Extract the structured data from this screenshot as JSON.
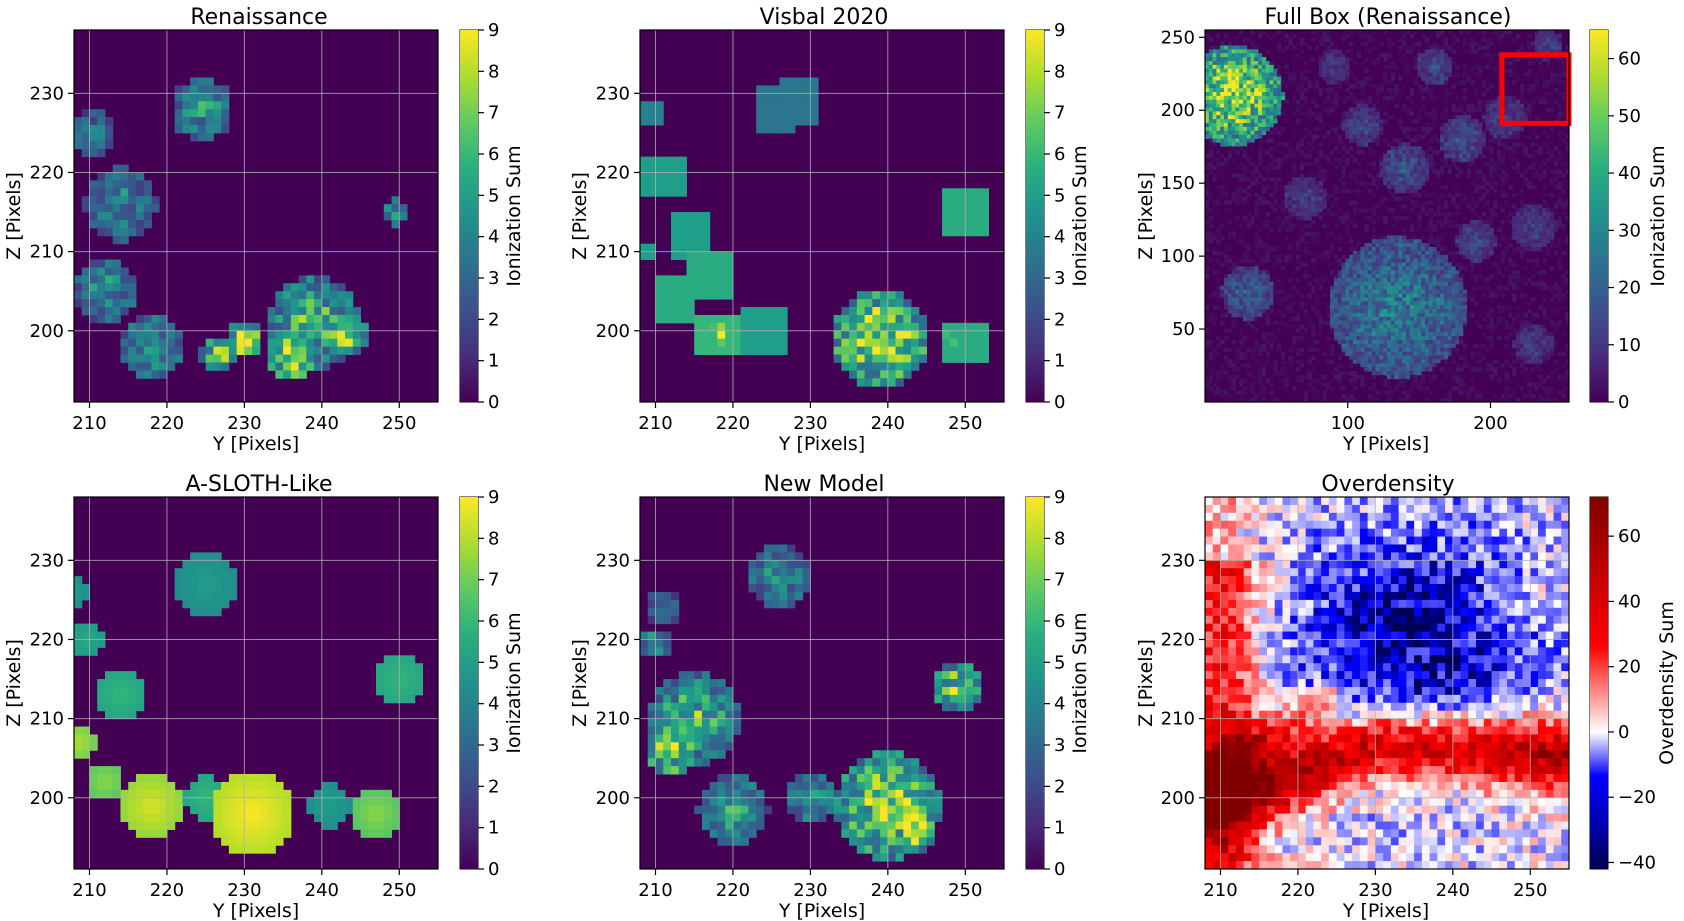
{
  "chart_data": [
    {
      "type": "heatmap",
      "title": "Renaissance",
      "xlabel": "Y [Pixels]",
      "ylabel": "Z [Pixels]",
      "xlim": [
        208,
        255
      ],
      "ylim": [
        191,
        238
      ],
      "xticks": [
        210,
        220,
        230,
        240,
        250
      ],
      "yticks": [
        200,
        210,
        220,
        230
      ],
      "grid": true,
      "colormap": "viridis",
      "colorbar": {
        "label": "Ionization Sum",
        "range": [
          0,
          9
        ],
        "ticks": [
          0,
          1,
          2,
          3,
          4,
          5,
          6,
          7,
          8,
          9
        ]
      },
      "blobs": [
        {
          "x": 224.5,
          "y": 228,
          "r": 3.5,
          "value": 5
        },
        {
          "x": 210.5,
          "y": 225,
          "r": 2.5,
          "value": 4
        },
        {
          "x": 214,
          "y": 216,
          "r": 4,
          "value": 4.5
        },
        {
          "x": 212,
          "y": 205,
          "r": 3.5,
          "value": 5
        },
        {
          "x": 249.5,
          "y": 215,
          "r": 1.5,
          "value": 5
        },
        {
          "x": 239,
          "y": 201,
          "r": 5,
          "value": 6.5
        },
        {
          "x": 236,
          "y": 197,
          "r": 3,
          "value": 8.5
        },
        {
          "x": 230,
          "y": 199,
          "r": 2,
          "value": 9
        },
        {
          "x": 218,
          "y": 198,
          "r": 3.5,
          "value": 5.5
        },
        {
          "x": 226.5,
          "y": 197,
          "r": 2,
          "value": 7.5
        },
        {
          "x": 243,
          "y": 199.5,
          "r": 2.5,
          "value": 7.5
        }
      ]
    },
    {
      "type": "heatmap",
      "title": "Visbal 2020",
      "xlabel": "Y [Pixels]",
      "ylabel": "Z [Pixels]",
      "xlim": [
        208,
        255
      ],
      "ylim": [
        191,
        238
      ],
      "xticks": [
        210,
        220,
        230,
        240,
        250
      ],
      "yticks": [
        200,
        210,
        220,
        230
      ],
      "grid": true,
      "colormap": "viridis",
      "colorbar": {
        "label": "Ionization Sum",
        "range": [
          0,
          9
        ],
        "ticks": [
          0,
          1,
          2,
          3,
          4,
          5,
          6,
          7,
          8,
          9
        ]
      },
      "squares": [
        {
          "x": 209.5,
          "y": 227.5,
          "half": 1.5,
          "value": 4
        },
        {
          "x": 225.5,
          "y": 228,
          "half": 2.5,
          "value": 3.5
        },
        {
          "x": 228.5,
          "y": 229,
          "half": 2.5,
          "value": 3.5
        },
        {
          "x": 211,
          "y": 219.5,
          "half": 2.5,
          "value": 5
        },
        {
          "x": 214.5,
          "y": 212,
          "half": 2.5,
          "value": 5
        },
        {
          "x": 209,
          "y": 210,
          "half": 1,
          "value": 5
        },
        {
          "x": 217,
          "y": 207,
          "half": 2.5,
          "value": 5.5
        },
        {
          "x": 212.5,
          "y": 204,
          "half": 2.5,
          "value": 5.5
        },
        {
          "x": 218,
          "y": 199.5,
          "half": 2.5,
          "value": 6
        },
        {
          "x": 224,
          "y": 200,
          "half": 2.5,
          "value": 5
        },
        {
          "x": 250,
          "y": 215,
          "half": 2.5,
          "value": 5.5
        },
        {
          "x": 250,
          "y": 198.5,
          "half": 2.5,
          "value": 5.5
        }
      ],
      "blobs": [
        {
          "x": 218,
          "y": 199.5,
          "r": 1.2,
          "value": 9
        },
        {
          "x": 239,
          "y": 199,
          "r": 5.5,
          "value": 8.5
        },
        {
          "x": 248,
          "y": 198.5,
          "r": 1.2,
          "value": 8
        }
      ]
    },
    {
      "type": "heatmap",
      "title": "Full Box (Renaissance)",
      "xlabel": "Y [Pixels]",
      "ylabel": "Z [Pixels]",
      "xlim": [
        0,
        255
      ],
      "ylim": [
        0,
        255
      ],
      "xticks": [
        100,
        200
      ],
      "yticks": [
        50,
        100,
        150,
        200,
        250
      ],
      "grid": false,
      "colormap": "viridis",
      "colorbar": {
        "label": "Ionization Sum",
        "range": [
          0,
          65
        ],
        "ticks": [
          0,
          10,
          20,
          30,
          40,
          50,
          60
        ]
      },
      "highlight_box": {
        "x0": 208,
        "x1": 255,
        "y0": 191,
        "y1": 238,
        "color": "#ff0000"
      },
      "blobs": [
        {
          "x": 20,
          "y": 210,
          "r": 30,
          "value": 60
        },
        {
          "x": 135,
          "y": 65,
          "r": 42,
          "value": 28
        },
        {
          "x": 30,
          "y": 75,
          "r": 16,
          "value": 20
        },
        {
          "x": 140,
          "y": 160,
          "r": 15,
          "value": 16
        },
        {
          "x": 180,
          "y": 180,
          "r": 14,
          "value": 16
        },
        {
          "x": 110,
          "y": 190,
          "r": 12,
          "value": 14
        },
        {
          "x": 160,
          "y": 230,
          "r": 11,
          "value": 14
        },
        {
          "x": 230,
          "y": 120,
          "r": 14,
          "value": 12
        },
        {
          "x": 230,
          "y": 40,
          "r": 12,
          "value": 12
        },
        {
          "x": 70,
          "y": 140,
          "r": 13,
          "value": 12
        },
        {
          "x": 190,
          "y": 110,
          "r": 12,
          "value": 14
        },
        {
          "x": 210,
          "y": 195,
          "r": 13,
          "value": 12
        },
        {
          "x": 90,
          "y": 230,
          "r": 10,
          "value": 10
        },
        {
          "x": 240,
          "y": 245,
          "r": 9,
          "value": 12
        }
      ]
    },
    {
      "type": "heatmap",
      "title": "A-SLOTH-Like",
      "xlabel": "Y [Pixels]",
      "ylabel": "Z [Pixels]",
      "xlim": [
        208,
        255
      ],
      "ylim": [
        191,
        238
      ],
      "xticks": [
        210,
        220,
        230,
        240,
        250
      ],
      "yticks": [
        200,
        210,
        220,
        230
      ],
      "grid": true,
      "colormap": "viridis",
      "colorbar": {
        "label": "Ionization Sum",
        "range": [
          0,
          9
        ],
        "ticks": [
          0,
          1,
          2,
          3,
          4,
          5,
          6,
          7,
          8,
          9
        ]
      },
      "blobs": [
        {
          "x": 225,
          "y": 227,
          "r": 4,
          "value": 5
        },
        {
          "x": 208.5,
          "y": 226,
          "r": 1.8,
          "value": 5
        },
        {
          "x": 209.5,
          "y": 220,
          "r": 2.3,
          "value": 5.5
        },
        {
          "x": 214,
          "y": 213,
          "r": 3,
          "value": 6
        },
        {
          "x": 250,
          "y": 215,
          "r": 3.3,
          "value": 6
        },
        {
          "x": 208.5,
          "y": 207,
          "r": 2.3,
          "value": 8
        },
        {
          "x": 212,
          "y": 202,
          "r": 2.5,
          "value": 7.5
        },
        {
          "x": 218,
          "y": 199,
          "r": 4.2,
          "value": 8.5
        },
        {
          "x": 225,
          "y": 200,
          "r": 2.8,
          "value": 6
        },
        {
          "x": 231,
          "y": 198,
          "r": 5.5,
          "value": 9
        },
        {
          "x": 241,
          "y": 199,
          "r": 2.8,
          "value": 5
        },
        {
          "x": 247,
          "y": 198,
          "r": 3,
          "value": 7.5
        }
      ]
    },
    {
      "type": "heatmap",
      "title": "New Model",
      "xlabel": "Y [Pixels]",
      "ylabel": "Z [Pixels]",
      "xlim": [
        208,
        255
      ],
      "ylim": [
        191,
        238
      ],
      "xticks": [
        210,
        220,
        230,
        240,
        250
      ],
      "yticks": [
        200,
        210,
        220,
        230
      ],
      "grid": true,
      "colormap": "viridis",
      "colorbar": {
        "label": "Ionization Sum",
        "range": [
          0,
          9
        ],
        "ticks": [
          0,
          1,
          2,
          3,
          4,
          5,
          6,
          7,
          8,
          9
        ]
      },
      "blobs": [
        {
          "x": 226,
          "y": 228,
          "r": 3.5,
          "value": 5
        },
        {
          "x": 211,
          "y": 224,
          "r": 2,
          "value": 4
        },
        {
          "x": 210,
          "y": 219.5,
          "r": 1.6,
          "value": 5.5
        },
        {
          "x": 215,
          "y": 210,
          "r": 5,
          "value": 6.5
        },
        {
          "x": 212,
          "y": 206,
          "r": 3,
          "value": 8
        },
        {
          "x": 249,
          "y": 214,
          "r": 2.8,
          "value": 7.5
        },
        {
          "x": 240,
          "y": 199,
          "r": 6,
          "value": 8
        },
        {
          "x": 243,
          "y": 196,
          "r": 3,
          "value": 8.5
        },
        {
          "x": 220,
          "y": 198.5,
          "r": 4,
          "value": 5.5
        },
        {
          "x": 230,
          "y": 200,
          "r": 3,
          "value": 5
        }
      ]
    },
    {
      "type": "heatmap",
      "title": "Overdensity",
      "xlabel": "Y [Pixels]",
      "ylabel": "Z [Pixels]",
      "xlim": [
        208,
        255
      ],
      "ylim": [
        191,
        238
      ],
      "xticks": [
        210,
        220,
        230,
        240,
        250
      ],
      "yticks": [
        200,
        210,
        220,
        230
      ],
      "grid": true,
      "colormap": "seismic",
      "colorbar": {
        "label": "Overdensity Sum",
        "range": [
          -42,
          72
        ],
        "ticks": [
          -40,
          -20,
          0,
          20,
          40,
          60
        ]
      }
    }
  ]
}
